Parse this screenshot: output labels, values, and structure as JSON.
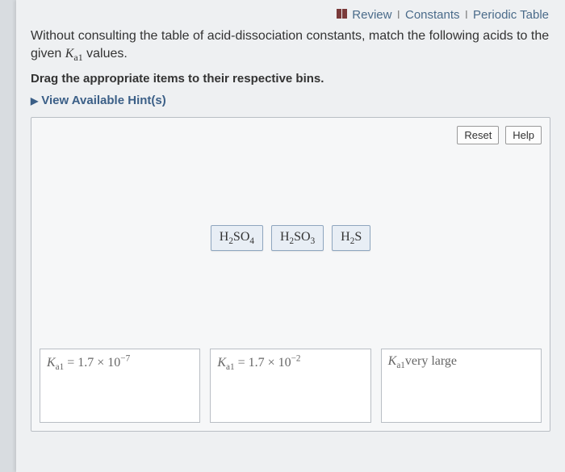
{
  "top_links": {
    "review": "Review",
    "constants": "Constants",
    "periodic": "Periodic Table"
  },
  "question": {
    "line1_pre": "Without consulting the table of acid-dissociation constants, match the following acids to the given ",
    "ka_symbol": "K",
    "ka_sub": "a1",
    "line1_post": " values."
  },
  "instruction": "Drag the appropriate items to their respective bins.",
  "hints_label": "View Available Hint(s)",
  "buttons": {
    "reset": "Reset",
    "help": "Help"
  },
  "chips": [
    {
      "formula_html": "H<sub>2</sub>SO<sub>4</sub>"
    },
    {
      "formula_html": "H<sub>2</sub>SO<sub>3</sub>"
    },
    {
      "formula_html": "H<sub>2</sub>S"
    }
  ],
  "bins": [
    {
      "label_html": "<i>K</i><sub>a1</sub> = 1.7 × 10<sup>−7</sup>"
    },
    {
      "label_html": "<i>K</i><sub>a1</sub> = 1.7 × 10<sup>−2</sup>"
    },
    {
      "label_html": "<i>K</i><sub>a1</sub>very large"
    }
  ],
  "colors": {
    "page_bg": "#eef0f2",
    "outer_bg": "#d8dce0",
    "link": "#4a6b8a",
    "hint": "#3b5f87",
    "chip_bg": "#e8eef5",
    "chip_border": "#8fa6bf",
    "bin_border": "#b9bec4"
  }
}
